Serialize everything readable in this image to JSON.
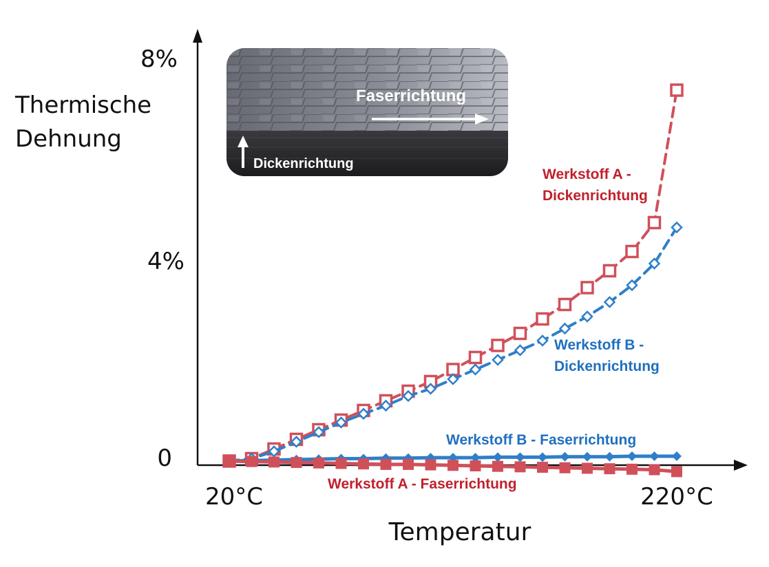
{
  "chart_data": {
    "type": "line",
    "ylabel": [
      "Thermische",
      "Dehnung"
    ],
    "xlabel": "Temperatur",
    "x_tick_labels": [
      "20°C",
      "220°C"
    ],
    "y_tick_labels": [
      "0",
      "4%",
      "8%"
    ],
    "xlim": [
      20,
      220
    ],
    "ylim": [
      0,
      8
    ],
    "x": [
      20,
      30,
      40,
      50,
      60,
      70,
      80,
      90,
      100,
      110,
      120,
      130,
      140,
      150,
      160,
      170,
      180,
      190,
      200,
      210,
      220
    ],
    "series": [
      {
        "name": "Werkstoff A - Dickenrichtung",
        "label_lines": [
          "Werkstoff A -",
          "Dickenrichtung"
        ],
        "color": "#d0505a",
        "style": "dashed",
        "marker": "square",
        "values": [
          0.0,
          0.05,
          0.25,
          0.45,
          0.65,
          0.85,
          1.05,
          1.25,
          1.45,
          1.65,
          1.9,
          2.15,
          2.4,
          2.65,
          2.95,
          3.25,
          3.6,
          3.95,
          4.35,
          4.95,
          7.7
        ]
      },
      {
        "name": "Werkstoff B - Dickenrichtung",
        "label_lines": [
          "Werkstoff B -",
          "Dickenrichtung"
        ],
        "color": "#2f7fc8",
        "style": "dashed",
        "marker": "diamond",
        "values": [
          0.0,
          0.05,
          0.2,
          0.4,
          0.6,
          0.8,
          0.98,
          1.15,
          1.35,
          1.5,
          1.7,
          1.9,
          2.1,
          2.3,
          2.5,
          2.75,
          3.0,
          3.3,
          3.65,
          4.1,
          4.85
        ]
      },
      {
        "name": "Werkstoff B - Faserrichtung",
        "label_lines": [
          "Werkstoff B - Faserrichtung"
        ],
        "color": "#2f7fc8",
        "style": "solid",
        "marker": "diamond",
        "values": [
          0.0,
          0.01,
          0.02,
          0.03,
          0.04,
          0.05,
          0.05,
          0.06,
          0.06,
          0.07,
          0.07,
          0.07,
          0.08,
          0.08,
          0.08,
          0.09,
          0.09,
          0.09,
          0.1,
          0.1,
          0.1
        ]
      },
      {
        "name": "Werkstoff A - Faserrichtung",
        "label_lines": [
          "Werkstoff A - Faserrichtung"
        ],
        "color": "#d0505a",
        "style": "solid",
        "marker": "square",
        "values": [
          0.0,
          -0.01,
          -0.02,
          -0.03,
          -0.04,
          -0.05,
          -0.06,
          -0.07,
          -0.07,
          -0.08,
          -0.09,
          -0.1,
          -0.11,
          -0.12,
          -0.13,
          -0.14,
          -0.15,
          -0.16,
          -0.17,
          -0.18,
          -0.22
        ]
      }
    ],
    "legend": "inline"
  },
  "inset": {
    "fiber_direction_label": "Faserrichtung",
    "thickness_direction_label": "Dickenrichtung"
  }
}
